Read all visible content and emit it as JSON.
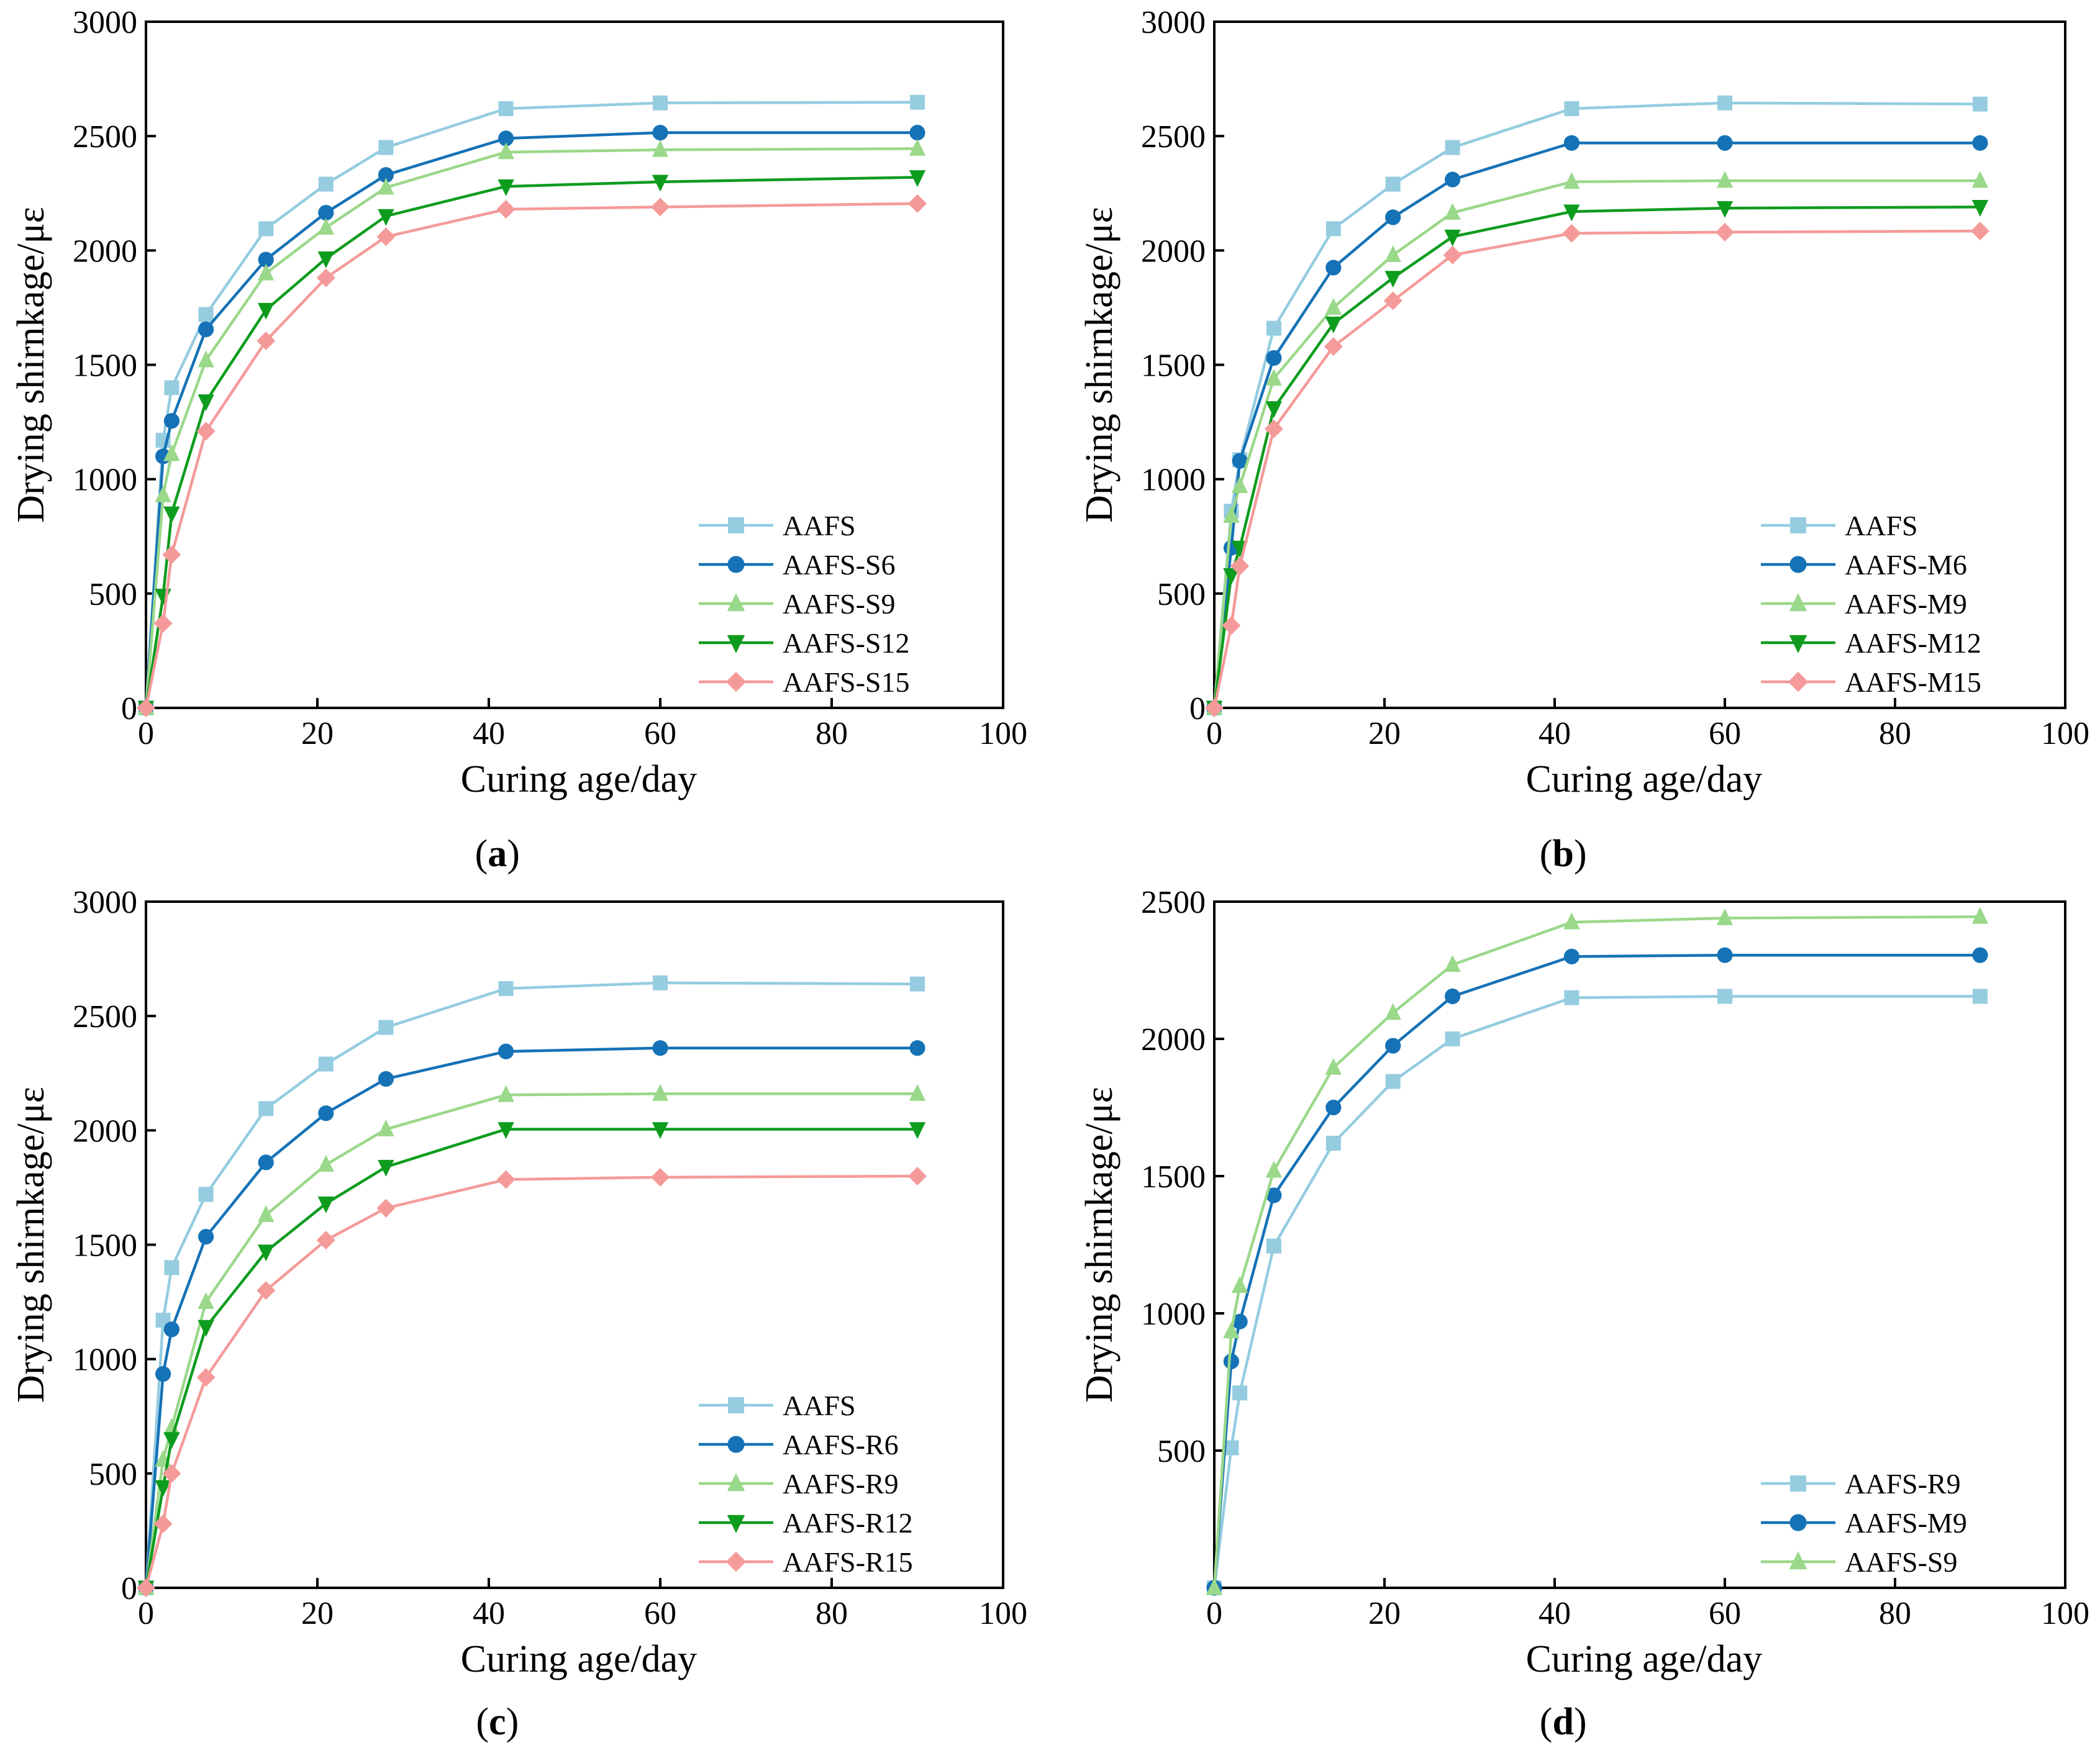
{
  "chart_data": [
    {
      "type": "line",
      "panel_label": "a",
      "xlabel": "Curing age/day",
      "ylabel": "Drying shirnkage/με",
      "xlim": [
        0,
        100
      ],
      "ylim": [
        0,
        3000
      ],
      "xticks": [
        0,
        20,
        40,
        60,
        80,
        100
      ],
      "yticks": [
        0,
        500,
        1000,
        1500,
        2000,
        2500,
        3000
      ],
      "legend_position": "bottom-right",
      "x": [
        0,
        2,
        3,
        7,
        14,
        21,
        28,
        42,
        60,
        90
      ],
      "series": [
        {
          "name": "AAFS",
          "color": "#95CCE0",
          "marker": "square",
          "values": [
            0,
            1170,
            1400,
            1720,
            2095,
            2290,
            2450,
            2620,
            2645,
            2648
          ]
        },
        {
          "name": "AAFS-S6",
          "color": "#1572B6",
          "marker": "circle",
          "values": [
            0,
            1100,
            1255,
            1655,
            1960,
            2165,
            2330,
            2490,
            2515,
            2515
          ]
        },
        {
          "name": "AAFS-S9",
          "color": "#9AD88A",
          "marker": "triangle-up",
          "values": [
            0,
            930,
            1110,
            1520,
            1900,
            2100,
            2275,
            2430,
            2440,
            2445
          ]
        },
        {
          "name": "AAFS-S12",
          "color": "#0E9C1E",
          "marker": "triangle-down",
          "values": [
            0,
            490,
            850,
            1340,
            1740,
            1965,
            2150,
            2280,
            2300,
            2320
          ]
        },
        {
          "name": "AAFS-S15",
          "color": "#F59A9A",
          "marker": "diamond",
          "values": [
            0,
            370,
            670,
            1210,
            1605,
            1880,
            2060,
            2180,
            2190,
            2205
          ]
        }
      ]
    },
    {
      "type": "line",
      "panel_label": "b",
      "xlabel": "Curing age/day",
      "ylabel": "Drying shirnkage/με",
      "xlim": [
        0,
        100
      ],
      "ylim": [
        0,
        3000
      ],
      "xticks": [
        0,
        20,
        40,
        60,
        80,
        100
      ],
      "yticks": [
        0,
        500,
        1000,
        1500,
        2000,
        2500,
        3000
      ],
      "legend_position": "bottom-right",
      "x": [
        0,
        2,
        3,
        7,
        14,
        21,
        28,
        42,
        60,
        90
      ],
      "series": [
        {
          "name": "AAFS",
          "color": "#95CCE0",
          "marker": "square",
          "values": [
            0,
            860,
            1085,
            1660,
            2095,
            2290,
            2450,
            2620,
            2645,
            2640
          ]
        },
        {
          "name": "AAFS-M6",
          "color": "#1572B6",
          "marker": "circle",
          "values": [
            0,
            700,
            1080,
            1530,
            1925,
            2145,
            2310,
            2470,
            2470,
            2470
          ]
        },
        {
          "name": "AAFS-M9",
          "color": "#9AD88A",
          "marker": "triangle-up",
          "values": [
            0,
            840,
            970,
            1440,
            1750,
            1980,
            2165,
            2300,
            2305,
            2305
          ]
        },
        {
          "name": "AAFS-M12",
          "color": "#0E9C1E",
          "marker": "triangle-down",
          "values": [
            0,
            580,
            700,
            1310,
            1680,
            1880,
            2060,
            2170,
            2185,
            2190
          ]
        },
        {
          "name": "AAFS-M15",
          "color": "#F59A9A",
          "marker": "diamond",
          "values": [
            0,
            360,
            620,
            1220,
            1580,
            1780,
            1980,
            2075,
            2080,
            2085
          ]
        }
      ]
    },
    {
      "type": "line",
      "panel_label": "c",
      "xlabel": "Curing age/day",
      "ylabel": "Drying shirnkage/με",
      "xlim": [
        0,
        100
      ],
      "ylim": [
        0,
        3000
      ],
      "xticks": [
        0,
        20,
        40,
        60,
        80,
        100
      ],
      "yticks": [
        0,
        500,
        1000,
        1500,
        2000,
        2500,
        3000
      ],
      "legend_position": "bottom-right",
      "x": [
        0,
        2,
        3,
        7,
        14,
        21,
        28,
        42,
        60,
        90
      ],
      "series": [
        {
          "name": "AAFS",
          "color": "#95CCE0",
          "marker": "square",
          "values": [
            0,
            1170,
            1400,
            1720,
            2095,
            2290,
            2450,
            2620,
            2645,
            2640
          ]
        },
        {
          "name": "AAFS-R6",
          "color": "#1572B6",
          "marker": "circle",
          "values": [
            0,
            935,
            1130,
            1535,
            1860,
            2075,
            2225,
            2345,
            2360,
            2360
          ]
        },
        {
          "name": "AAFS-R9",
          "color": "#9AD88A",
          "marker": "triangle-up",
          "values": [
            0,
            560,
            700,
            1250,
            1630,
            1850,
            2005,
            2155,
            2160,
            2160
          ]
        },
        {
          "name": "AAFS-R12",
          "color": "#0E9C1E",
          "marker": "triangle-down",
          "values": [
            0,
            440,
            650,
            1140,
            1470,
            1680,
            1840,
            2005,
            2005,
            2005
          ]
        },
        {
          "name": "AAFS-R15",
          "color": "#F59A9A",
          "marker": "diamond",
          "values": [
            0,
            280,
            500,
            920,
            1300,
            1520,
            1660,
            1785,
            1795,
            1800
          ]
        }
      ]
    },
    {
      "type": "line",
      "panel_label": "d",
      "xlabel": "Curing age/day",
      "ylabel": "Drying shirnkage/με",
      "xlim": [
        0,
        100
      ],
      "ylim": [
        0,
        2500
      ],
      "ymin_shown": 0,
      "xticks": [
        0,
        20,
        40,
        60,
        80,
        100
      ],
      "yticks": [
        500,
        1000,
        1500,
        2000,
        2500
      ],
      "legend_position": "bottom-right",
      "x": [
        0,
        2,
        3,
        7,
        14,
        21,
        28,
        42,
        60,
        90
      ],
      "series": [
        {
          "name": "AAFS-R9",
          "color": "#95CCE0",
          "marker": "square",
          "values": [
            0,
            510,
            710,
            1245,
            1620,
            1845,
            2000,
            2150,
            2155,
            2155
          ]
        },
        {
          "name": "AAFS-M9",
          "color": "#1572B6",
          "marker": "circle",
          "values": [
            0,
            825,
            970,
            1430,
            1750,
            1975,
            2155,
            2300,
            2305,
            2305
          ]
        },
        {
          "name": "AAFS-S9",
          "color": "#9AD88A",
          "marker": "triangle-up",
          "values": [
            0,
            935,
            1100,
            1520,
            1895,
            2095,
            2270,
            2425,
            2440,
            2445
          ]
        }
      ]
    }
  ]
}
